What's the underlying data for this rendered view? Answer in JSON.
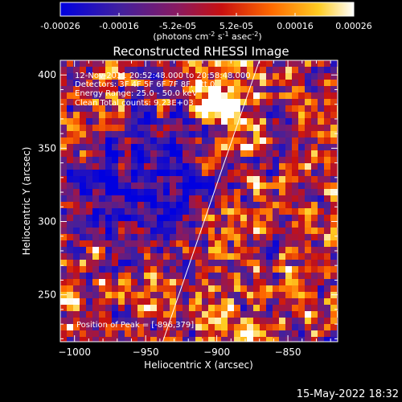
{
  "colorbar": {
    "ticks": [
      "-0.00026",
      "-0.00016",
      "-5.2e-05",
      "5.2e-05",
      "0.00016",
      "0.00026"
    ],
    "unit_label": "(photons cm",
    "unit_exp1": "-2",
    "unit_mid": " s",
    "unit_exp2": "-1",
    "unit_end": " asec",
    "unit_exp3": "-2",
    "unit_close": ")",
    "stops": [
      "#0000e0",
      "#4020a0",
      "#8a1a60",
      "#c81010",
      "#ff6a00",
      "#ffcc22",
      "#ffffff"
    ]
  },
  "footer_timestamp": "15-May-2022 18:32",
  "chart_data": {
    "type": "heatmap",
    "title": "Reconstructed RHESSI Image",
    "xlabel": "Heliocentric X (arcsec)",
    "ylabel": "Heliocentric Y (arcsec)",
    "xlim": [
      -1010,
      -815
    ],
    "ylim": [
      218,
      410
    ],
    "xticks": [
      -1000,
      -950,
      -900,
      -850
    ],
    "yticks": [
      250,
      300,
      350,
      400
    ],
    "annotations": [
      "12-Nov-2011 20:52:48.000 to 20:58:48.000",
      "Detectors: 3F 4F 5F 6F 7F 8F, Att 0",
      "Energy Range: 25.0 - 50.0 keV",
      "Clean     Total counts: 9.23E+03"
    ],
    "peak_label": "Position of Peak = [-896,379]",
    "peak": [
      -896,
      379
    ],
    "limb_line": [
      [
        -938,
        218
      ],
      [
        -870,
        410
      ]
    ],
    "grid": false
  }
}
